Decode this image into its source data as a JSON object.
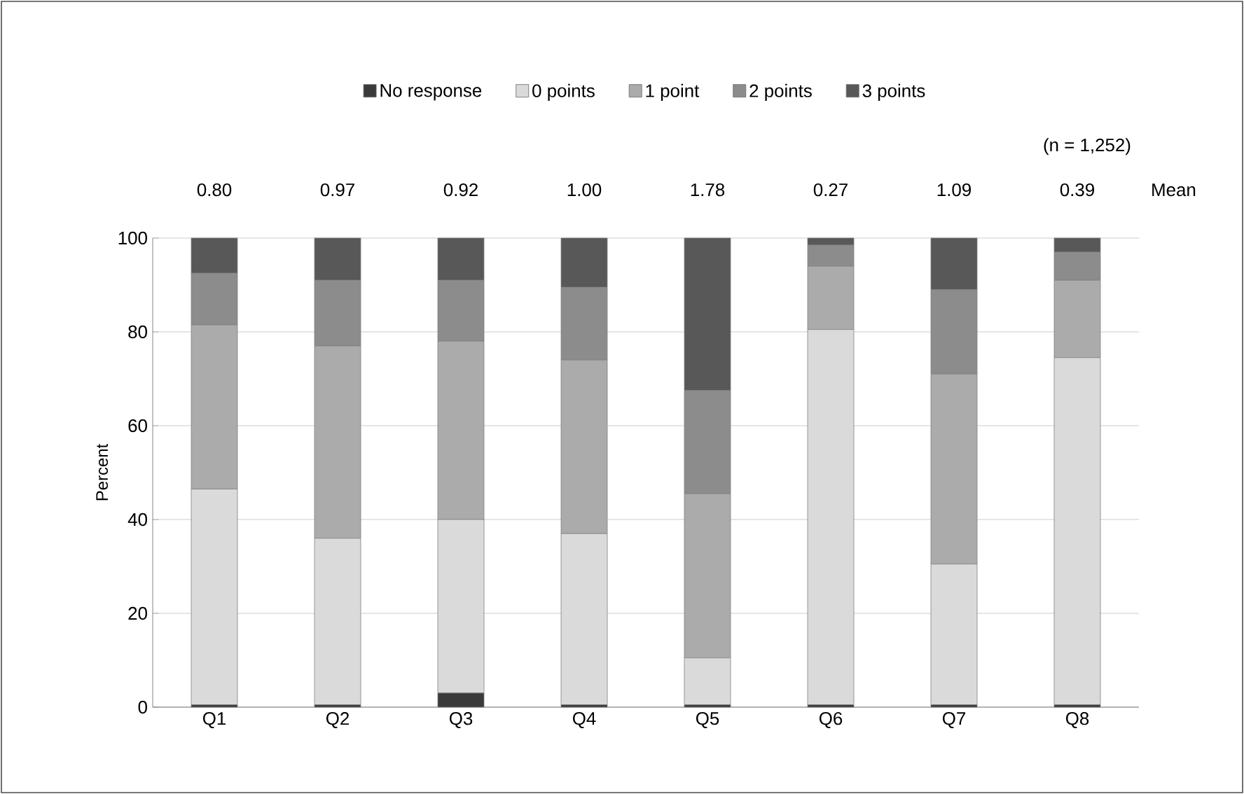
{
  "chart_data": {
    "type": "bar",
    "stacked": true,
    "ylabel": "Percent",
    "categories": [
      "Q1",
      "Q2",
      "Q3",
      "Q4",
      "Q5",
      "Q6",
      "Q7",
      "Q8"
    ],
    "series": [
      {
        "name": "No response",
        "color": "#3a3a3a",
        "values": [
          0.5,
          0.5,
          3,
          0.5,
          0.5,
          0.5,
          0.5,
          0.5
        ]
      },
      {
        "name": "0 points",
        "color": "#dadada",
        "values": [
          46,
          35.5,
          37,
          36.5,
          10,
          80,
          30,
          74
        ]
      },
      {
        "name": "1 point",
        "color": "#ababab",
        "values": [
          35,
          41,
          38,
          37,
          35,
          13.5,
          40.5,
          16.5
        ]
      },
      {
        "name": "2 points",
        "color": "#8c8c8c",
        "values": [
          11,
          14,
          13,
          15.5,
          22,
          4.5,
          18,
          6
        ]
      },
      {
        "name": "3 points",
        "color": "#585858",
        "values": [
          7.5,
          9,
          9,
          10.5,
          32.5,
          1.5,
          11,
          3
        ]
      }
    ],
    "ylim": [
      0,
      100
    ],
    "yticks": [
      0,
      20,
      40,
      60,
      80,
      100
    ],
    "grid": "y",
    "legend": "top",
    "annotations": [
      "0.80",
      "0.97",
      "0.92",
      "1.00",
      "1.78",
      "0.27",
      "1.09",
      "0.39",
      "(n = 1,252)",
      "Mean"
    ]
  }
}
